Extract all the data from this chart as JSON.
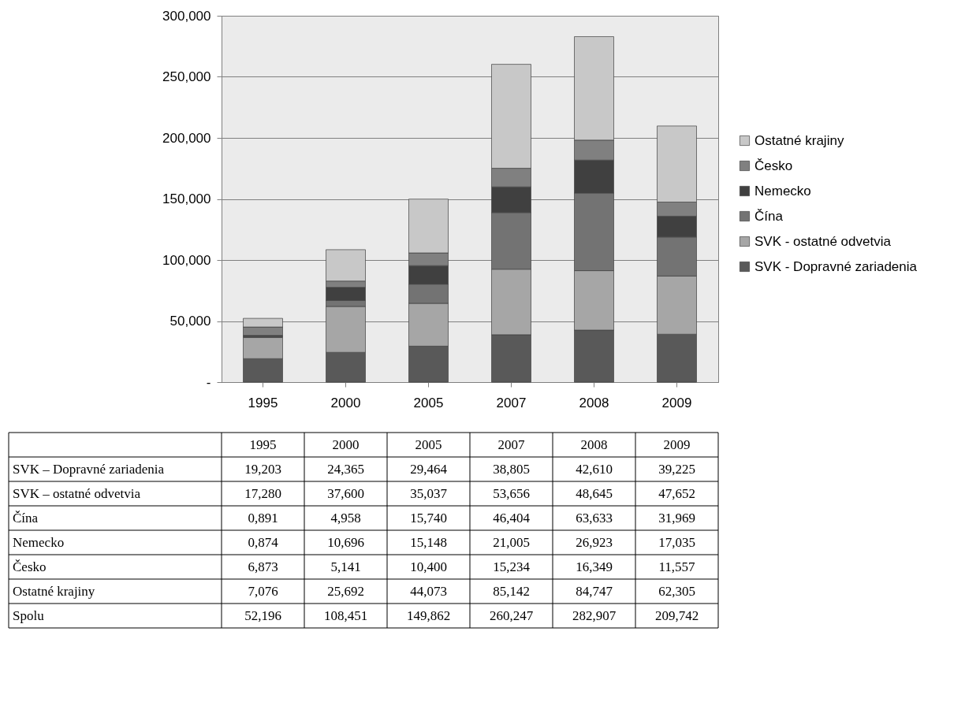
{
  "chart_data": {
    "type": "bar",
    "stacked": true,
    "categories": [
      "1995",
      "2000",
      "2005",
      "2007",
      "2008",
      "2009"
    ],
    "series": [
      {
        "name": "SVK - Dopravné zariadenia",
        "color": "#595959",
        "values": [
          19.203,
          24.365,
          29.464,
          38.805,
          42.61,
          39.225
        ],
        "value_labels": [
          "19,203",
          "24,365",
          "29,464",
          "38,805",
          "42,610",
          "39,225"
        ]
      },
      {
        "name": "SVK - ostatné odvetvia",
        "color": "#a6a6a6",
        "values": [
          17.28,
          37.6,
          35.037,
          53.656,
          48.645,
          47.652
        ],
        "value_labels": [
          "17,280",
          "37,600",
          "35,037",
          "53,656",
          "48,645",
          "47,652"
        ]
      },
      {
        "name": "Čína",
        "color": "#737373",
        "values": [
          0.891,
          4.958,
          15.74,
          46.404,
          63.633,
          31.969
        ],
        "value_labels": [
          "0,891",
          "4,958",
          "15,740",
          "46,404",
          "63,633",
          "31,969"
        ]
      },
      {
        "name": "Nemecko",
        "color": "#404040",
        "values": [
          0.874,
          10.696,
          15.148,
          21.005,
          26.923,
          17.035
        ],
        "value_labels": [
          "0,874",
          "10,696",
          "15,148",
          "21,005",
          "26,923",
          "17,035"
        ]
      },
      {
        "name": "Česko",
        "color": "#808080",
        "values": [
          6.873,
          5.141,
          10.4,
          15.234,
          16.349,
          11.557
        ],
        "value_labels": [
          "6,873",
          "5,141",
          "10,400",
          "15,234",
          "16,349",
          "11,557"
        ]
      },
      {
        "name": "Ostatné krajiny",
        "color": "#c8c8c8",
        "values": [
          7.076,
          25.692,
          44.073,
          85.142,
          84.747,
          62.305
        ],
        "value_labels": [
          "7,076",
          "25,692",
          "44,073",
          "85,142",
          "84,747",
          "62,305"
        ]
      }
    ],
    "annotations": [
      "SVK – Dopravné zariadenia",
      "SVK – ostatné odvetvia",
      "Čína",
      "Nemecko",
      "Česko",
      "Ostatné krajiny",
      "Spolu",
      "52,196",
      "108,451",
      "149,862",
      "260,247",
      "282,907",
      "209,742"
    ],
    "ylim": [
      0,
      300
    ],
    "yticks": [
      {
        "value": 0,
        "label": "-"
      },
      {
        "value": 50,
        "label": "50,000"
      },
      {
        "value": 100,
        "label": "100,000"
      },
      {
        "value": 150,
        "label": "150,000"
      },
      {
        "value": 200,
        "label": "200,000"
      },
      {
        "value": 250,
        "label": "250,000"
      },
      {
        "value": 300,
        "label": "300,000"
      }
    ],
    "grid": "y",
    "legend": "right"
  }
}
